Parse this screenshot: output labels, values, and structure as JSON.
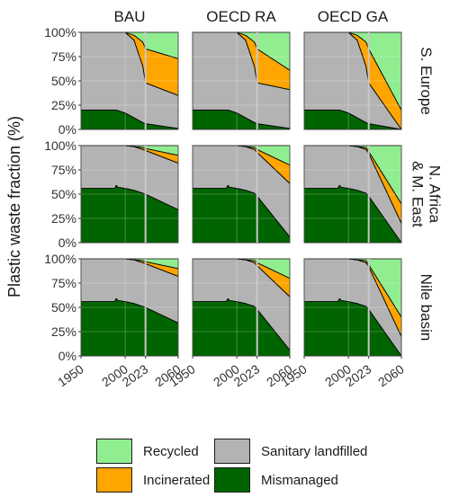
{
  "chart_data": {
    "type": "area",
    "stacked": true,
    "ylabel": "Plastic waste fraction (%)",
    "xlabel": "",
    "x_ticks": [
      1950,
      2000,
      2023,
      2060
    ],
    "y_ticks": [
      "0%",
      "25%",
      "50%",
      "75%",
      "100%"
    ],
    "xlim": [
      1950,
      2060
    ],
    "ylim": [
      0,
      100
    ],
    "vline_year": 2023,
    "grid": true,
    "legend_position": "bottom",
    "column_labels": [
      "BAU",
      "OECD RA",
      "OECD GA"
    ],
    "row_labels": [
      [
        "S. Europe"
      ],
      [
        "N. Africa",
        "& M. East"
      ],
      [
        "Nile basin"
      ]
    ],
    "series_order": [
      "Mismanaged",
      "Sanitary landfilled",
      "Incinerated",
      "Recycled"
    ],
    "colors": {
      "Mismanaged": "#006400",
      "Sanitary landfilled": "#b3b3b3",
      "Incinerated": "#ffa500",
      "Recycled": "#90ee90"
    },
    "panels": [
      [
        {
          "x": [
            1950,
            1980,
            1990,
            2000,
            2010,
            2020,
            2023,
            2060
          ],
          "Mismanaged": [
            20,
            20,
            20,
            17,
            12,
            7,
            6,
            1
          ],
          "Sanitary landfilled": [
            80,
            80,
            80,
            83,
            80,
            58,
            42,
            34
          ],
          "Incinerated": [
            0,
            0,
            0,
            0,
            5,
            25,
            35,
            38
          ],
          "Recycled": [
            0,
            0,
            0,
            0,
            3,
            10,
            17,
            27
          ]
        },
        {
          "x": [
            1950,
            1980,
            1990,
            2000,
            2010,
            2020,
            2023,
            2060
          ],
          "Mismanaged": [
            20,
            20,
            20,
            17,
            12,
            7,
            6,
            1
          ],
          "Sanitary landfilled": [
            80,
            80,
            80,
            83,
            80,
            58,
            42,
            40
          ],
          "Incinerated": [
            0,
            0,
            0,
            0,
            5,
            25,
            35,
            20
          ],
          "Recycled": [
            0,
            0,
            0,
            0,
            3,
            10,
            17,
            39
          ]
        },
        {
          "x": [
            1950,
            1980,
            1990,
            2000,
            2010,
            2020,
            2023,
            2060
          ],
          "Mismanaged": [
            20,
            20,
            20,
            17,
            12,
            7,
            6,
            0
          ],
          "Sanitary landfilled": [
            80,
            80,
            80,
            83,
            80,
            58,
            42,
            0
          ],
          "Incinerated": [
            0,
            0,
            0,
            0,
            5,
            25,
            35,
            20
          ],
          "Recycled": [
            0,
            0,
            0,
            0,
            3,
            10,
            17,
            80
          ]
        }
      ],
      [
        {
          "x": [
            1950,
            1980,
            1988,
            1990,
            1992,
            2000,
            2010,
            2020,
            2023,
            2060
          ],
          "Mismanaged": [
            56,
            56,
            56,
            59,
            57,
            56,
            54,
            51,
            50,
            34
          ],
          "Sanitary landfilled": [
            44,
            44,
            44,
            41,
            43,
            44,
            45,
            45,
            45,
            48
          ],
          "Incinerated": [
            0,
            0,
            0,
            0,
            0,
            0,
            0,
            2,
            2,
            8
          ],
          "Recycled": [
            0,
            0,
            0,
            0,
            0,
            0,
            1,
            2,
            3,
            10
          ]
        },
        {
          "x": [
            1950,
            1980,
            1988,
            1990,
            1992,
            2000,
            2010,
            2020,
            2023,
            2060
          ],
          "Mismanaged": [
            56,
            56,
            56,
            59,
            57,
            56,
            54,
            51,
            48,
            6
          ],
          "Sanitary landfilled": [
            44,
            44,
            44,
            41,
            43,
            44,
            45,
            45,
            45,
            55
          ],
          "Incinerated": [
            0,
            0,
            0,
            0,
            0,
            0,
            0,
            2,
            3,
            19
          ],
          "Recycled": [
            0,
            0,
            0,
            0,
            0,
            0,
            1,
            2,
            4,
            20
          ]
        },
        {
          "x": [
            1950,
            1980,
            1988,
            1990,
            1992,
            2000,
            2010,
            2020,
            2023,
            2060
          ],
          "Mismanaged": [
            56,
            56,
            56,
            59,
            57,
            56,
            54,
            51,
            48,
            0
          ],
          "Sanitary landfilled": [
            44,
            44,
            44,
            41,
            43,
            44,
            45,
            45,
            44,
            20
          ],
          "Incinerated": [
            0,
            0,
            0,
            0,
            0,
            0,
            0,
            2,
            2,
            20
          ],
          "Recycled": [
            0,
            0,
            0,
            0,
            0,
            0,
            1,
            2,
            6,
            60
          ]
        }
      ],
      [
        {
          "x": [
            1950,
            1980,
            1988,
            1990,
            1992,
            2000,
            2010,
            2020,
            2023,
            2060
          ],
          "Mismanaged": [
            56,
            56,
            56,
            59,
            57,
            56,
            54,
            51,
            50,
            34
          ],
          "Sanitary landfilled": [
            44,
            44,
            44,
            41,
            43,
            44,
            45,
            45,
            45,
            48
          ],
          "Incinerated": [
            0,
            0,
            0,
            0,
            0,
            0,
            0,
            2,
            2,
            8
          ],
          "Recycled": [
            0,
            0,
            0,
            0,
            0,
            0,
            1,
            2,
            3,
            10
          ]
        },
        {
          "x": [
            1950,
            1980,
            1988,
            1990,
            1992,
            2000,
            2010,
            2020,
            2023,
            2060
          ],
          "Mismanaged": [
            56,
            56,
            56,
            59,
            57,
            56,
            54,
            51,
            48,
            6
          ],
          "Sanitary landfilled": [
            44,
            44,
            44,
            41,
            43,
            44,
            45,
            45,
            45,
            55
          ],
          "Incinerated": [
            0,
            0,
            0,
            0,
            0,
            0,
            0,
            2,
            3,
            19
          ],
          "Recycled": [
            0,
            0,
            0,
            0,
            0,
            0,
            1,
            2,
            4,
            20
          ]
        },
        {
          "x": [
            1950,
            1980,
            1988,
            1990,
            1992,
            2000,
            2010,
            2020,
            2023,
            2060
          ],
          "Mismanaged": [
            56,
            56,
            56,
            59,
            57,
            56,
            54,
            51,
            48,
            0
          ],
          "Sanitary landfilled": [
            44,
            44,
            44,
            41,
            43,
            44,
            45,
            45,
            44,
            20
          ],
          "Incinerated": [
            0,
            0,
            0,
            0,
            0,
            0,
            0,
            2,
            2,
            20
          ],
          "Recycled": [
            0,
            0,
            0,
            0,
            0,
            0,
            1,
            2,
            6,
            60
          ]
        }
      ]
    ]
  },
  "legend": {
    "items": [
      {
        "key": "recycled",
        "label": "Recycled",
        "color": "#90ee90"
      },
      {
        "key": "landfilled",
        "label": "Sanitary landfilled",
        "color": "#b3b3b3"
      },
      {
        "key": "incinerated",
        "label": "Incinerated",
        "color": "#ffa500"
      },
      {
        "key": "mismanaged",
        "label": "Mismanaged",
        "color": "#006400"
      }
    ]
  }
}
